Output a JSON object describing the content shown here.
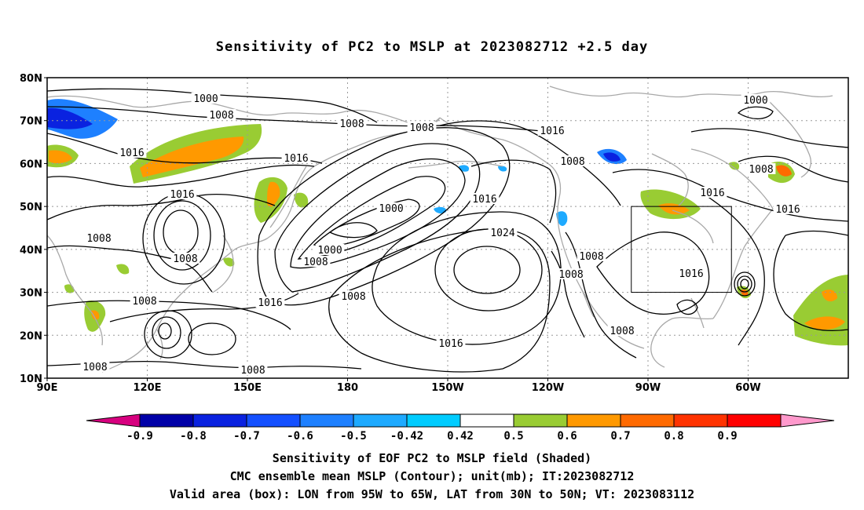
{
  "title": "Sensitivity of PC2 to MSLP at 2023082712 +2.5 day",
  "lat_labels": [
    "80N",
    "70N",
    "60N",
    "50N",
    "40N",
    "30N",
    "20N",
    "10N"
  ],
  "lon_labels": [
    "90E",
    "120E",
    "150E",
    "180",
    "150W",
    "120W",
    "90W",
    "60W"
  ],
  "contour_labels": [
    "1000",
    "1008",
    "1008",
    "1016",
    "1016",
    "1016",
    "1008",
    "1008",
    "1000",
    "1008",
    "1016",
    "1016",
    "1008",
    "1000",
    "1000",
    "1008",
    "1016",
    "1016",
    "1016",
    "1024",
    "1008",
    "1008",
    "1016",
    "1016",
    "1008",
    "1008",
    "1008",
    "1008",
    "1008",
    "1016",
    "1008",
    "1000"
  ],
  "colorbar": {
    "labels": [
      "-0.9",
      "-0.8",
      "-0.7",
      "-0.6",
      "-0.5",
      "-0.42",
      "0.42",
      "0.5",
      "0.6",
      "0.7",
      "0.8",
      "0.9"
    ],
    "colors": [
      "#d7007f",
      "#0000a8",
      "#0a22e0",
      "#1450ff",
      "#1e80ff",
      "#1eaaff",
      "#00ccff",
      "#ffffff",
      "#99cc33",
      "#ff9900",
      "#ff6a00",
      "#ff3300",
      "#ff0000",
      "#ff99cc"
    ]
  },
  "valid_area": {
    "lon_from": "95W",
    "lon_to": "65W",
    "lat_from": "30N",
    "lat_to": "50N"
  },
  "captions": [
    "Sensitivity of EOF PC2 to MSLP field (Shaded)",
    "CMC ensemble mean MSLP (Contour); unit(mb); IT:2023082712",
    "Valid area (box): LON from 95W to 65W, LAT from 30N to 50N; VT: 2023083112"
  ],
  "colors": {
    "contour": "#000000",
    "coast": "#a8a8a8",
    "grid": "#999999",
    "frame": "#000000"
  }
}
